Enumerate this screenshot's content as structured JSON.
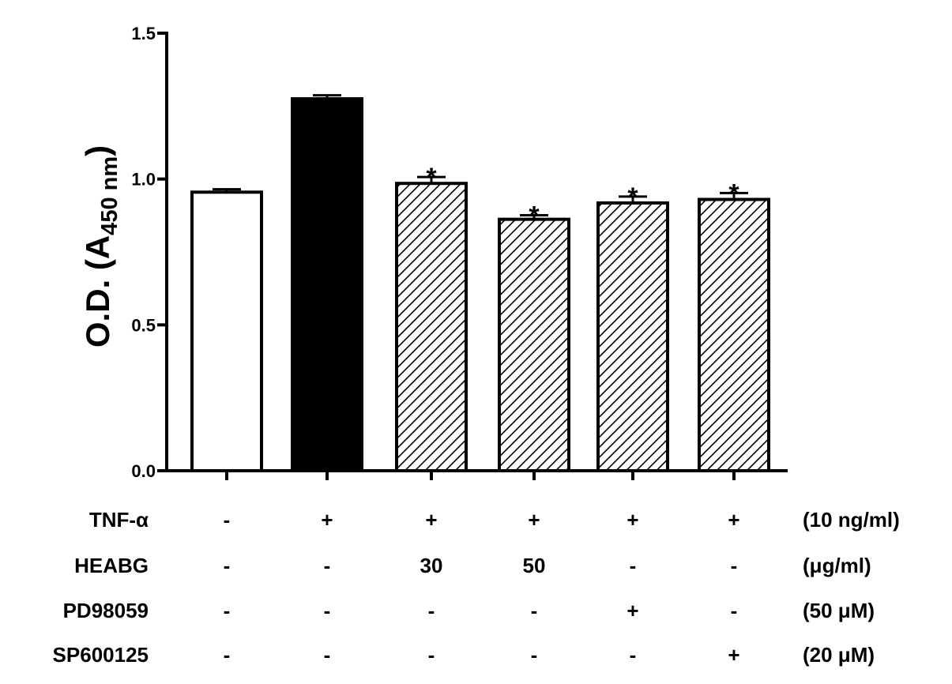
{
  "chart_data": {
    "type": "bar",
    "ylabel": {
      "main": "O.D. (A",
      "subscript": "450 nm",
      "close": ")"
    },
    "ylim": [
      0,
      1.5
    ],
    "yticks": [
      {
        "value": 0.0,
        "label": "0.0"
      },
      {
        "value": 0.5,
        "label": "0.5"
      },
      {
        "value": 1.0,
        "label": "1.0"
      },
      {
        "value": 1.5,
        "label": "1.5"
      }
    ],
    "bars": [
      {
        "value": 0.955,
        "error": 0.01,
        "fill": "white",
        "significance": ""
      },
      {
        "value": 1.275,
        "error": 0.012,
        "fill": "black",
        "significance": ""
      },
      {
        "value": 0.985,
        "error": 0.022,
        "fill": "hatch",
        "significance": "*"
      },
      {
        "value": 0.862,
        "error": 0.014,
        "fill": "hatch",
        "significance": "*"
      },
      {
        "value": 0.918,
        "error": 0.022,
        "fill": "hatch",
        "significance": "*"
      },
      {
        "value": 0.93,
        "error": 0.022,
        "fill": "hatch",
        "significance": "*"
      }
    ],
    "treatments": [
      {
        "name": "TNF-α",
        "values": [
          "-",
          "+",
          "+",
          "+",
          "+",
          "+"
        ],
        "unit": "(10 ng/ml)"
      },
      {
        "name": "HEABG",
        "values": [
          "-",
          "-",
          "30",
          "50",
          "-",
          "-"
        ],
        "unit": "(μg/ml)"
      },
      {
        "name": "PD98059",
        "values": [
          "-",
          "-",
          "-",
          "-",
          "+",
          "-"
        ],
        "unit": "(50 μM)"
      },
      {
        "name": "SP600125",
        "values": [
          "-",
          "-",
          "-",
          "-",
          "-",
          "+"
        ],
        "unit": "(20 μM)"
      }
    ],
    "colors": {
      "axis": "#000000",
      "bar_edge": "#000000",
      "hatch": "#000000",
      "background": "#ffffff"
    }
  }
}
